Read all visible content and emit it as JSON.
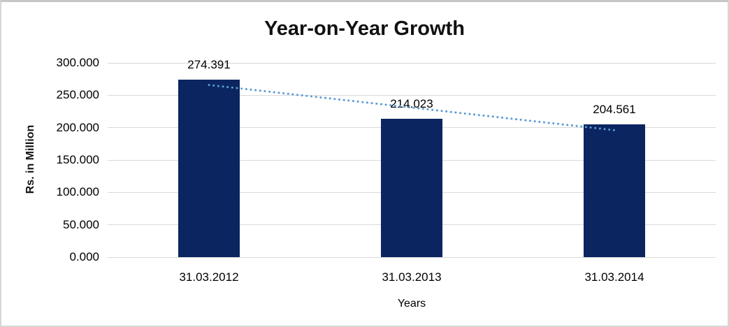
{
  "chart_data": {
    "type": "bar",
    "title": "Year-on-Year Growth",
    "categories": [
      "31.03.2012",
      "31.03.2013",
      "31.03.2014"
    ],
    "values": [
      274.391,
      214.023,
      204.561
    ],
    "value_labels": [
      "274.391",
      "214.023",
      "204.561"
    ],
    "xlabel": "Years",
    "ylabel": "Rs. in Million",
    "ylim": [
      0,
      300
    ],
    "ytick_step": 50,
    "ytick_labels": [
      "300.000",
      "250.000",
      "200.000",
      "150.000",
      "100.000",
      "50.000",
      "0.000"
    ],
    "grid": true,
    "legend_position": "none",
    "bar_color": "#0a2560",
    "gridline_color": "#d9d9d9",
    "trendline": {
      "type": "linear",
      "style": "dotted",
      "color": "#5b9bd5",
      "fitted_values": [
        265.907,
        230.992,
        196.077
      ]
    }
  }
}
